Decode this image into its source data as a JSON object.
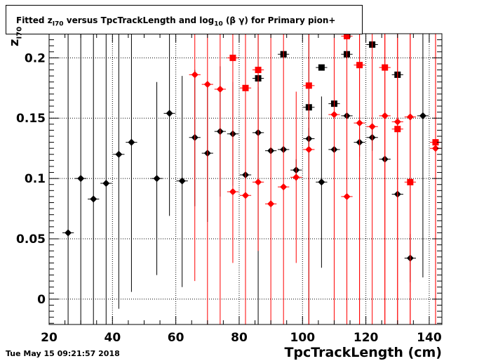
{
  "title": {
    "pre": "Fitted  z",
    "sub1": "I70",
    "mid": "  versus TpcTrackLength and log",
    "sub2": "10",
    "post": " (β γ) for Primary pion+"
  },
  "ylabel": {
    "main": "z",
    "sub": "I70"
  },
  "xlabel": "TpcTrackLength (cm)",
  "timestamp": "Tue May 15 09:21:57 2018",
  "colors": {
    "black": "#000000",
    "red": "#ff0000"
  },
  "chart_data": {
    "type": "scatter",
    "title": "Fitted z_I70 versus TpcTrackLength and log10 (β γ) for Primary pion+",
    "xlabel": "TpcTrackLength (cm)",
    "ylabel": "z_I70",
    "xlim": [
      20,
      144
    ],
    "ylim": [
      -0.021,
      0.22
    ],
    "x_ticks": [
      20,
      40,
      60,
      80,
      100,
      120,
      140
    ],
    "x_tick_labels": [
      "20",
      "40",
      "60",
      "80",
      "100",
      "120",
      "140"
    ],
    "y_ticks": [
      0,
      0.05,
      0.1,
      0.15,
      0.2
    ],
    "y_tick_labels": [
      "0",
      "0.05",
      "0.1",
      "0.15",
      "0.2"
    ],
    "grid": true,
    "series": [
      {
        "marker": "diamond",
        "color": "#000000",
        "points": [
          {
            "x": 26,
            "y": 0.055,
            "lo": -0.03,
            "hi": 0.22
          },
          {
            "x": 30,
            "y": 0.1,
            "lo": -0.03,
            "hi": 0.22
          },
          {
            "x": 34,
            "y": 0.083,
            "lo": -0.03,
            "hi": 0.22
          },
          {
            "x": 38,
            "y": 0.096,
            "lo": -0.03,
            "hi": 0.22
          },
          {
            "x": 42,
            "y": 0.12,
            "lo": -0.008,
            "hi": 0.22
          },
          {
            "x": 46,
            "y": 0.13,
            "lo": 0.006,
            "hi": 0.22
          },
          {
            "x": 54,
            "y": 0.1,
            "lo": 0.02,
            "hi": 0.18
          },
          {
            "x": 58,
            "y": 0.154,
            "lo": 0.069,
            "hi": 0.22
          },
          {
            "x": 62,
            "y": 0.098,
            "lo": 0.01,
            "hi": 0.185
          },
          {
            "x": 66,
            "y": 0.134,
            "lo": 0.077,
            "hi": 0.19
          },
          {
            "x": 70,
            "y": 0.121,
            "lo": 0.064,
            "hi": 0.178
          },
          {
            "x": 74,
            "y": 0.139,
            "lo": 0.085,
            "hi": 0.193
          },
          {
            "x": 78,
            "y": 0.137,
            "lo": 0.094,
            "hi": 0.18
          },
          {
            "x": 82,
            "y": 0.103,
            "lo": -0.03,
            "hi": 0.22
          },
          {
            "x": 86,
            "y": 0.138,
            "lo": 0.1,
            "hi": 0.176
          },
          {
            "x": 90,
            "y": 0.123,
            "lo": 0.123,
            "hi": 0.123
          },
          {
            "x": 94,
            "y": 0.124,
            "lo": 0.124,
            "hi": 0.124
          },
          {
            "x": 98,
            "y": 0.107,
            "lo": 0.098,
            "hi": 0.116
          },
          {
            "x": 102,
            "y": 0.133,
            "lo": 0.124,
            "hi": 0.142
          },
          {
            "x": 106,
            "y": 0.097,
            "lo": 0.026,
            "hi": 0.168
          },
          {
            "x": 110,
            "y": 0.124,
            "lo": 0.124,
            "hi": 0.124
          },
          {
            "x": 114,
            "y": 0.152,
            "lo": 0.152,
            "hi": 0.152
          },
          {
            "x": 118,
            "y": 0.13,
            "lo": 0.118,
            "hi": 0.142
          },
          {
            "x": 122,
            "y": 0.134,
            "lo": 0.123,
            "hi": 0.145
          },
          {
            "x": 126,
            "y": 0.116,
            "lo": 0.116,
            "hi": 0.116
          },
          {
            "x": 130,
            "y": 0.087,
            "lo": 0.087,
            "hi": 0.087
          },
          {
            "x": 134,
            "y": 0.034,
            "lo": 0.014,
            "hi": 0.054
          },
          {
            "x": 138,
            "y": 0.152,
            "lo": 0.018,
            "hi": 0.22
          }
        ]
      },
      {
        "marker": "square",
        "color": "#000000",
        "points": [
          {
            "x": 86,
            "y": 0.183,
            "lo": -0.03,
            "hi": 0.22
          },
          {
            "x": 94,
            "y": 0.203,
            "lo": 0.203,
            "hi": 0.203
          },
          {
            "x": 102,
            "y": 0.159,
            "lo": -0.03,
            "hi": 0.22
          },
          {
            "x": 106,
            "y": 0.192,
            "lo": 0.192,
            "hi": 0.192
          },
          {
            "x": 110,
            "y": 0.162,
            "lo": 0.162,
            "hi": 0.162
          },
          {
            "x": 114,
            "y": 0.203,
            "lo": 0.203,
            "hi": 0.203
          },
          {
            "x": 122,
            "y": 0.211,
            "lo": 0.211,
            "hi": 0.211
          },
          {
            "x": 130,
            "y": 0.186,
            "lo": 0.186,
            "hi": 0.186
          }
        ]
      },
      {
        "marker": "diamond",
        "color": "#ff0000",
        "points": [
          {
            "x": 66,
            "y": 0.186,
            "lo": 0.015,
            "hi": 0.22
          },
          {
            "x": 70,
            "y": 0.178,
            "lo": -0.03,
            "hi": 0.22
          },
          {
            "x": 74,
            "y": 0.174,
            "lo": -0.03,
            "hi": 0.22
          },
          {
            "x": 78,
            "y": 0.089,
            "lo": 0.03,
            "hi": 0.22
          },
          {
            "x": 82,
            "y": 0.086,
            "lo": -0.03,
            "hi": 0.22
          },
          {
            "x": 86,
            "y": 0.097,
            "lo": 0.04,
            "hi": 0.154
          },
          {
            "x": 90,
            "y": 0.079,
            "lo": -0.03,
            "hi": 0.22
          },
          {
            "x": 94,
            "y": 0.093,
            "lo": -0.03,
            "hi": 0.22
          },
          {
            "x": 98,
            "y": 0.101,
            "lo": 0.03,
            "hi": 0.172
          },
          {
            "x": 102,
            "y": 0.124,
            "lo": -0.03,
            "hi": 0.22
          },
          {
            "x": 110,
            "y": 0.153,
            "lo": -0.03,
            "hi": 0.22
          },
          {
            "x": 114,
            "y": 0.085,
            "lo": -0.011,
            "hi": 0.181
          },
          {
            "x": 118,
            "y": 0.146,
            "lo": -0.03,
            "hi": 0.22
          },
          {
            "x": 122,
            "y": 0.143,
            "lo": -0.03,
            "hi": 0.22
          },
          {
            "x": 126,
            "y": 0.152,
            "lo": -0.03,
            "hi": 0.22
          },
          {
            "x": 130,
            "y": 0.147,
            "lo": -0.03,
            "hi": 0.22
          },
          {
            "x": 134,
            "y": 0.151,
            "lo": -0.03,
            "hi": 0.22
          },
          {
            "x": 142,
            "y": 0.125,
            "lo": -0.03,
            "hi": 0.22
          }
        ]
      },
      {
        "marker": "square",
        "color": "#ff0000",
        "points": [
          {
            "x": 78,
            "y": 0.2,
            "lo": 0.2,
            "hi": 0.2
          },
          {
            "x": 82,
            "y": 0.175,
            "lo": -0.03,
            "hi": 0.22
          },
          {
            "x": 86,
            "y": 0.19,
            "lo": 0.12,
            "hi": 0.22
          },
          {
            "x": 102,
            "y": 0.177,
            "lo": 0.177,
            "hi": 0.177
          },
          {
            "x": 114,
            "y": 0.218,
            "lo": -0.03,
            "hi": 0.22
          },
          {
            "x": 118,
            "y": 0.194,
            "lo": -0.03,
            "hi": 0.22
          },
          {
            "x": 126,
            "y": 0.192,
            "lo": -0.03,
            "hi": 0.22
          },
          {
            "x": 130,
            "y": 0.141,
            "lo": -0.03,
            "hi": 0.22
          },
          {
            "x": 134,
            "y": 0.097,
            "lo": -0.03,
            "hi": 0.22
          },
          {
            "x": 142,
            "y": 0.13,
            "lo": -0.03,
            "hi": 0.22
          }
        ]
      }
    ]
  }
}
